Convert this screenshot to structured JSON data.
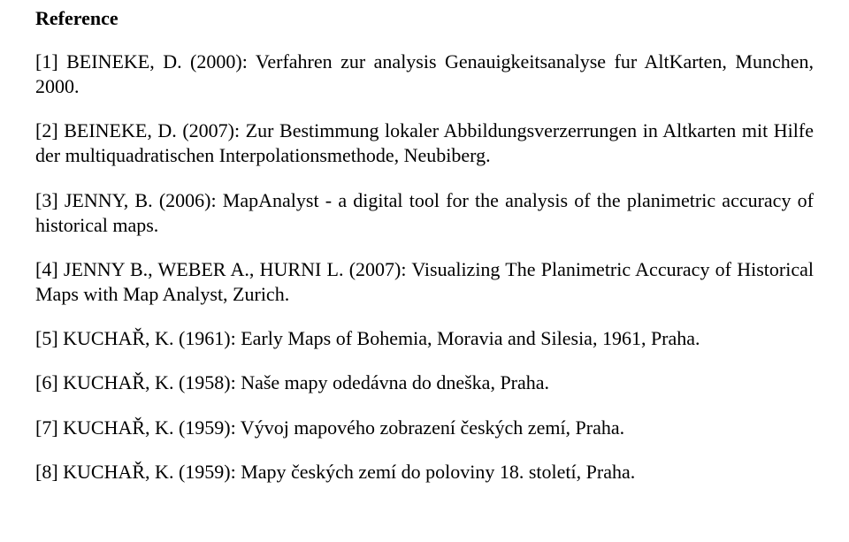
{
  "heading": "Reference",
  "references": [
    {
      "text": "[1]  BEINEKE, D. (2000): Verfahren zur analysis Genauigkeitsanalyse fur AltKarten, Munchen, 2000."
    },
    {
      "text": "[2]  BEINEKE, D. (2007): Zur Bestimmung lokaler Abbildungsverzerrungen in Altkarten mit Hilfe der multiquadratischen Interpolationsmethode, Neubiberg."
    },
    {
      "text": "[3]  JENNY, B. (2006): MapAnalyst - a digital tool for the analysis of the planimetric accuracy of historical maps."
    },
    {
      "text": "[4]  JENNY B., WEBER A., HURNI L. (2007): Visualizing The Planimetric Accuracy of Historical Maps with Map Analyst, Zurich."
    },
    {
      "text": "[5]  KUCHAŘ, K. (1961): Early Maps of Bohemia, Moravia and Silesia, 1961, Praha."
    },
    {
      "text": "[6]  KUCHAŘ, K. (1958): Naše mapy odedávna do dneška, Praha."
    },
    {
      "text": "[7]  KUCHAŘ, K. (1959): Vývoj mapového zobrazení českých zemí, Praha."
    },
    {
      "text": "[8]  KUCHAŘ, K. (1959): Mapy českých zemí do poloviny 18. století, Praha."
    }
  ]
}
